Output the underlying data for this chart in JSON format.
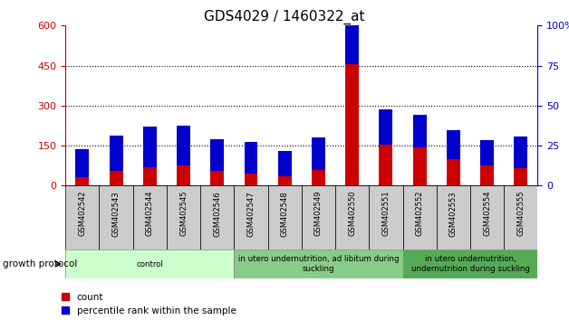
{
  "title": "GDS4029 / 1460322_at",
  "samples": [
    "GSM402542",
    "GSM402543",
    "GSM402544",
    "GSM402545",
    "GSM402546",
    "GSM402547",
    "GSM402548",
    "GSM402549",
    "GSM402550",
    "GSM402551",
    "GSM402552",
    "GSM402553",
    "GSM402554",
    "GSM402555"
  ],
  "count": [
    30,
    55,
    70,
    75,
    55,
    45,
    35,
    60,
    455,
    155,
    145,
    100,
    75,
    65
  ],
  "percentile": [
    18,
    22,
    25,
    25,
    20,
    20,
    16,
    20,
    46,
    22,
    20,
    18,
    16,
    20
  ],
  "groups": [
    {
      "label": "control",
      "start": 0,
      "end": 5,
      "color": "#ccffcc"
    },
    {
      "label": "in utero undernutrition, ad libitum during\nsuckling",
      "start": 5,
      "end": 10,
      "color": "#88cc88"
    },
    {
      "label": "in utero undernutrition,\nundernutrition during suckling",
      "start": 10,
      "end": 14,
      "color": "#55aa55"
    }
  ],
  "group_protocol_label": "growth protocol",
  "left_axis_color": "#cc0000",
  "right_axis_color": "#0000cc",
  "bar_color_count": "#cc0000",
  "bar_color_pct": "#0000cc",
  "ylim_left": [
    0,
    600
  ],
  "ylim_right": [
    0,
    100
  ],
  "left_ticks": [
    0,
    150,
    300,
    450,
    600
  ],
  "right_ticks": [
    0,
    25,
    50,
    75,
    100
  ],
  "right_tick_labels": [
    "0",
    "25",
    "50",
    "75",
    "100%"
  ],
  "dotted_lines": [
    150,
    300,
    450
  ],
  "bar_width": 0.4,
  "tick_fontsize": 8,
  "title_fontsize": 11,
  "xtick_bg_color": "#cccccc"
}
